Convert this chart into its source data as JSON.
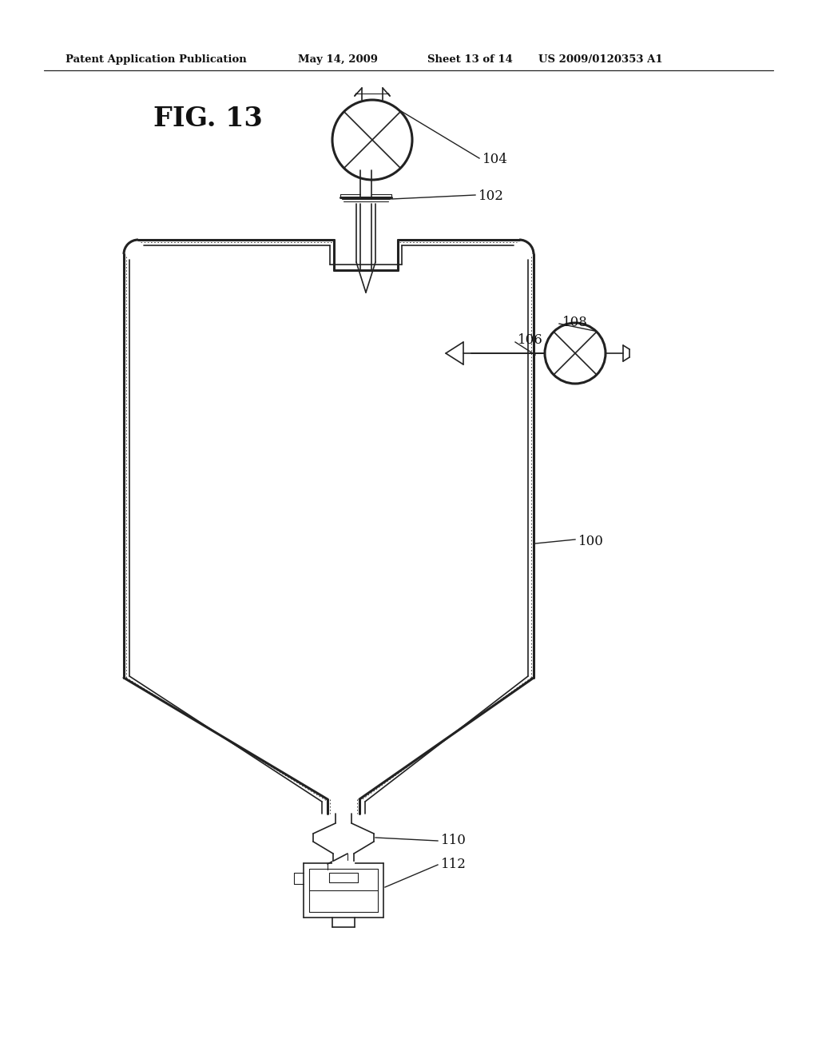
{
  "background_color": "#ffffff",
  "line_color": "#222222",
  "header_text": "Patent Application Publication",
  "header_date": "May 14, 2009",
  "header_sheet": "Sheet 13 of 14",
  "header_patent": "US 2009/0120353 A1",
  "fig_label": "FIG. 13",
  "label_100": "100",
  "label_102": "102",
  "label_104": "104",
  "label_106": "106",
  "label_108": "108",
  "label_110": "110",
  "label_112": "112"
}
